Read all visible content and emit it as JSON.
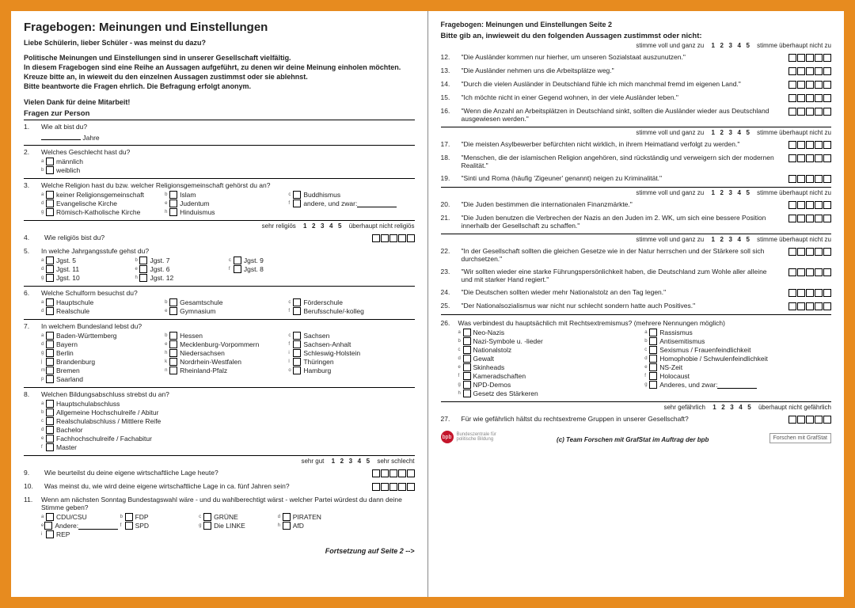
{
  "page1": {
    "title": "Fragebogen: Meinungen und Einstellungen",
    "salutation": "Liebe Schülerin, lieber Schüler - was meinst du dazu?",
    "intro_l1": "Politische Meinungen und Einstellungen sind in unserer Gesellschaft vielfältig.",
    "intro_l2": "In diesem Fragebogen sind eine Reihe an Aussagen aufgeführt, zu denen wir deine Meinung einholen möchten. Kreuze bitte an, in wieweit du den einzelnen Aussagen zustimmst oder sie ablehnst.",
    "intro_l3": "Bitte beantworte die Fragen ehrlich. Die Befragung erfolgt anonym.",
    "thanks": "Vielen Dank für deine Mitarbeit!",
    "section_person": "Fragen zur Person",
    "q1": {
      "n": "1.",
      "t": "Wie alt bist du?",
      "unit": "Jahre"
    },
    "q2": {
      "n": "2.",
      "t": "Welches Geschlecht hast du?",
      "opts": [
        "männlich",
        "weiblich"
      ]
    },
    "q3": {
      "n": "3.",
      "t": "Welche Religion hast du bzw. welcher Religionsgemeinschaft gehörst du an?",
      "opts": [
        "keiner Religionsgemeinschaft",
        "Islam",
        "Buddhismus",
        "Evangelische Kirche",
        "Judentum",
        "andere, und zwar:",
        "Römisch-Katholische Kirche",
        "Hinduismus"
      ]
    },
    "scale_relig": {
      "l": "sehr religiös",
      "nums": [
        "1",
        "2",
        "3",
        "4",
        "5"
      ],
      "r": "überhaupt nicht religiös"
    },
    "q4": {
      "n": "4.",
      "t": "Wie religiös bist du?"
    },
    "q5": {
      "n": "5.",
      "t": "In welche Jahrgangsstufe gehst du?",
      "opts": [
        "Jgst. 5",
        "Jgst. 7",
        "Jgst. 9",
        "Jgst. 11",
        "Jgst. 6",
        "Jgst. 8",
        "Jgst. 10",
        "Jgst. 12"
      ]
    },
    "q6": {
      "n": "6.",
      "t": "Welche Schulform besuchst du?",
      "opts": [
        "Hauptschule",
        "Gesamtschule",
        "Förderschule",
        "Realschule",
        "Gymnasium",
        "Berufsschule/-kolleg"
      ]
    },
    "q7": {
      "n": "7.",
      "t": "In welchem Bundesland lebst du?",
      "opts": [
        "Baden-Württemberg",
        "Hessen",
        "Sachsen",
        "Bayern",
        "Mecklenburg-Vorpommern",
        "Sachsen-Anhalt",
        "Berlin",
        "Niedersachsen",
        "Schleswig-Holstein",
        "Brandenburg",
        "Nordrhein-Westfalen",
        "Thüringen",
        "Bremen",
        "Rheinland-Pfalz",
        "Hamburg",
        "Saarland"
      ]
    },
    "q8": {
      "n": "8.",
      "t": "Welchen Bildungsabschluss strebst du an?",
      "opts": [
        "Hauptschulabschluss",
        "Allgemeine Hochschulreife / Abitur",
        "Realschulabschluss / Mittlere Reife",
        "Bachelor",
        "Fachhochschulreife / Fachabitur",
        "Master"
      ]
    },
    "scale_gut": {
      "l": "sehr gut",
      "nums": [
        "1",
        "2",
        "3",
        "4",
        "5"
      ],
      "r": "sehr schlecht"
    },
    "q9": {
      "n": "9.",
      "t": "Wie beurteilst du deine eigene wirtschaftliche Lage heute?"
    },
    "q10": {
      "n": "10.",
      "t": "Was meinst du, wie wird deine eigene wirtschaftliche Lage in ca. fünf Jahren sein?"
    },
    "q11": {
      "n": "11.",
      "t": "Wenn am nächsten Sonntag Bundestagswahl wäre - und du wahlberechtigt wärst - welcher Partei würdest du dann deine Stimme geben?",
      "opts": [
        "CDU/CSU",
        "FDP",
        "GRÜNE",
        "PIRATEN",
        "Andere:",
        "SPD",
        "Die LINKE",
        "AfD",
        "REP"
      ]
    },
    "continue": "Fortsetzung auf Seite 2 -->"
  },
  "page2": {
    "header": "Fragebogen: Meinungen und Einstellungen   Seite 2",
    "prompt": "Bitte gib an, inwieweit du den folgenden Aussagen zustimmst oder nicht:",
    "scale": {
      "l": "stimme voll und ganz zu",
      "nums": [
        "1",
        "2",
        "3",
        "4",
        "5"
      ],
      "r": "stimme überhaupt nicht zu"
    },
    "g1": [
      {
        "n": "12.",
        "t": "\"Die Ausländer kommen nur hierher, um unseren Sozialstaat auszunutzen.\""
      },
      {
        "n": "13.",
        "t": "\"Die Ausländer nehmen uns die Arbeitsplätze weg.\""
      },
      {
        "n": "14.",
        "t": "\"Durch die vielen Ausländer in Deutschland fühle ich mich manchmal fremd im eigenen Land.\""
      },
      {
        "n": "15.",
        "t": "\"Ich möchte nicht in einer Gegend wohnen, in der viele Ausländer leben.\""
      },
      {
        "n": "16.",
        "t": "\"Wenn die Anzahl an Arbeitsplätzen in Deutschland sinkt, sollten die Ausländer wieder aus Deutschland ausgewiesen werden.\""
      }
    ],
    "g2": [
      {
        "n": "17.",
        "t": "\"Die meisten Asylbewerber befürchten nicht wirklich, in ihrem Heimatland verfolgt zu werden.\""
      },
      {
        "n": "18.",
        "t": "\"Menschen, die der islamischen Religion angehören, sind rückständig und verweigern sich der modernen Realität.\""
      },
      {
        "n": "19.",
        "t": "\"Sinti und Roma (häufig 'Zigeuner' genannt) neigen zu Kriminalität.\""
      }
    ],
    "g3": [
      {
        "n": "20.",
        "t": "\"Die Juden bestimmen die internationalen Finanzmärkte.\""
      },
      {
        "n": "21.",
        "t": "\"Die Juden benutzen die Verbrechen der Nazis an den Juden im 2. WK, um sich eine bessere Position innerhalb der Gesellschaft zu schaffen.\""
      }
    ],
    "g4": [
      {
        "n": "22.",
        "t": "\"In der Gesellschaft sollten die gleichen Gesetze wie in der Natur herrschen und der Stärkere soll sich durchsetzen.\""
      },
      {
        "n": "23.",
        "t": "\"Wir sollten wieder eine starke Führungspersönlichkeit haben, die Deutschland zum Wohle aller alleine und mit starker Hand regiert.\""
      },
      {
        "n": "24.",
        "t": "\"Die Deutschen sollten wieder mehr Nationalstolz an den Tag legen.\""
      },
      {
        "n": "25.",
        "t": "\"Der Nationalsozialismus war nicht nur schlecht sondern hatte auch Positives.\""
      }
    ],
    "q26": {
      "n": "26.",
      "t": "Was verbindest du hauptsächlich mit Rechtsextremismus? (mehrere Nennungen möglich)",
      "left": [
        "Neo-Nazis",
        "Nazi-Symbole u. -lieder",
        "Nationalstolz",
        "Gewalt",
        "Skinheads",
        "Kameradschaften",
        "NPD-Demos",
        "Gesetz des Stärkeren"
      ],
      "right": [
        "Rassismus",
        "Antisemitismus",
        "Sexismus / Frauenfeindlichkeit",
        "Homophobie / Schwulenfeindlichkeit",
        "NS-Zeit",
        "Holocaust",
        "Anderes, und zwar:"
      ]
    },
    "scale_danger": {
      "l": "sehr gefährlich",
      "nums": [
        "1",
        "2",
        "3",
        "4",
        "5"
      ],
      "r": "überhaupt nicht gefährlich"
    },
    "q27": {
      "n": "27.",
      "t": "Für wie gefährlich hältst du rechtsextreme Gruppen in unserer Gesellschaft?"
    },
    "footer": {
      "logo": "bpb",
      "credit": "(c) Team Forschen mit GrafStat im Auftrag der bpb",
      "stamp": "Forschen mit GrafStat"
    }
  },
  "letters": [
    "a",
    "b",
    "c",
    "d",
    "e",
    "f",
    "g",
    "h",
    "i",
    "j",
    "k",
    "l",
    "m",
    "n",
    "o",
    "p"
  ]
}
